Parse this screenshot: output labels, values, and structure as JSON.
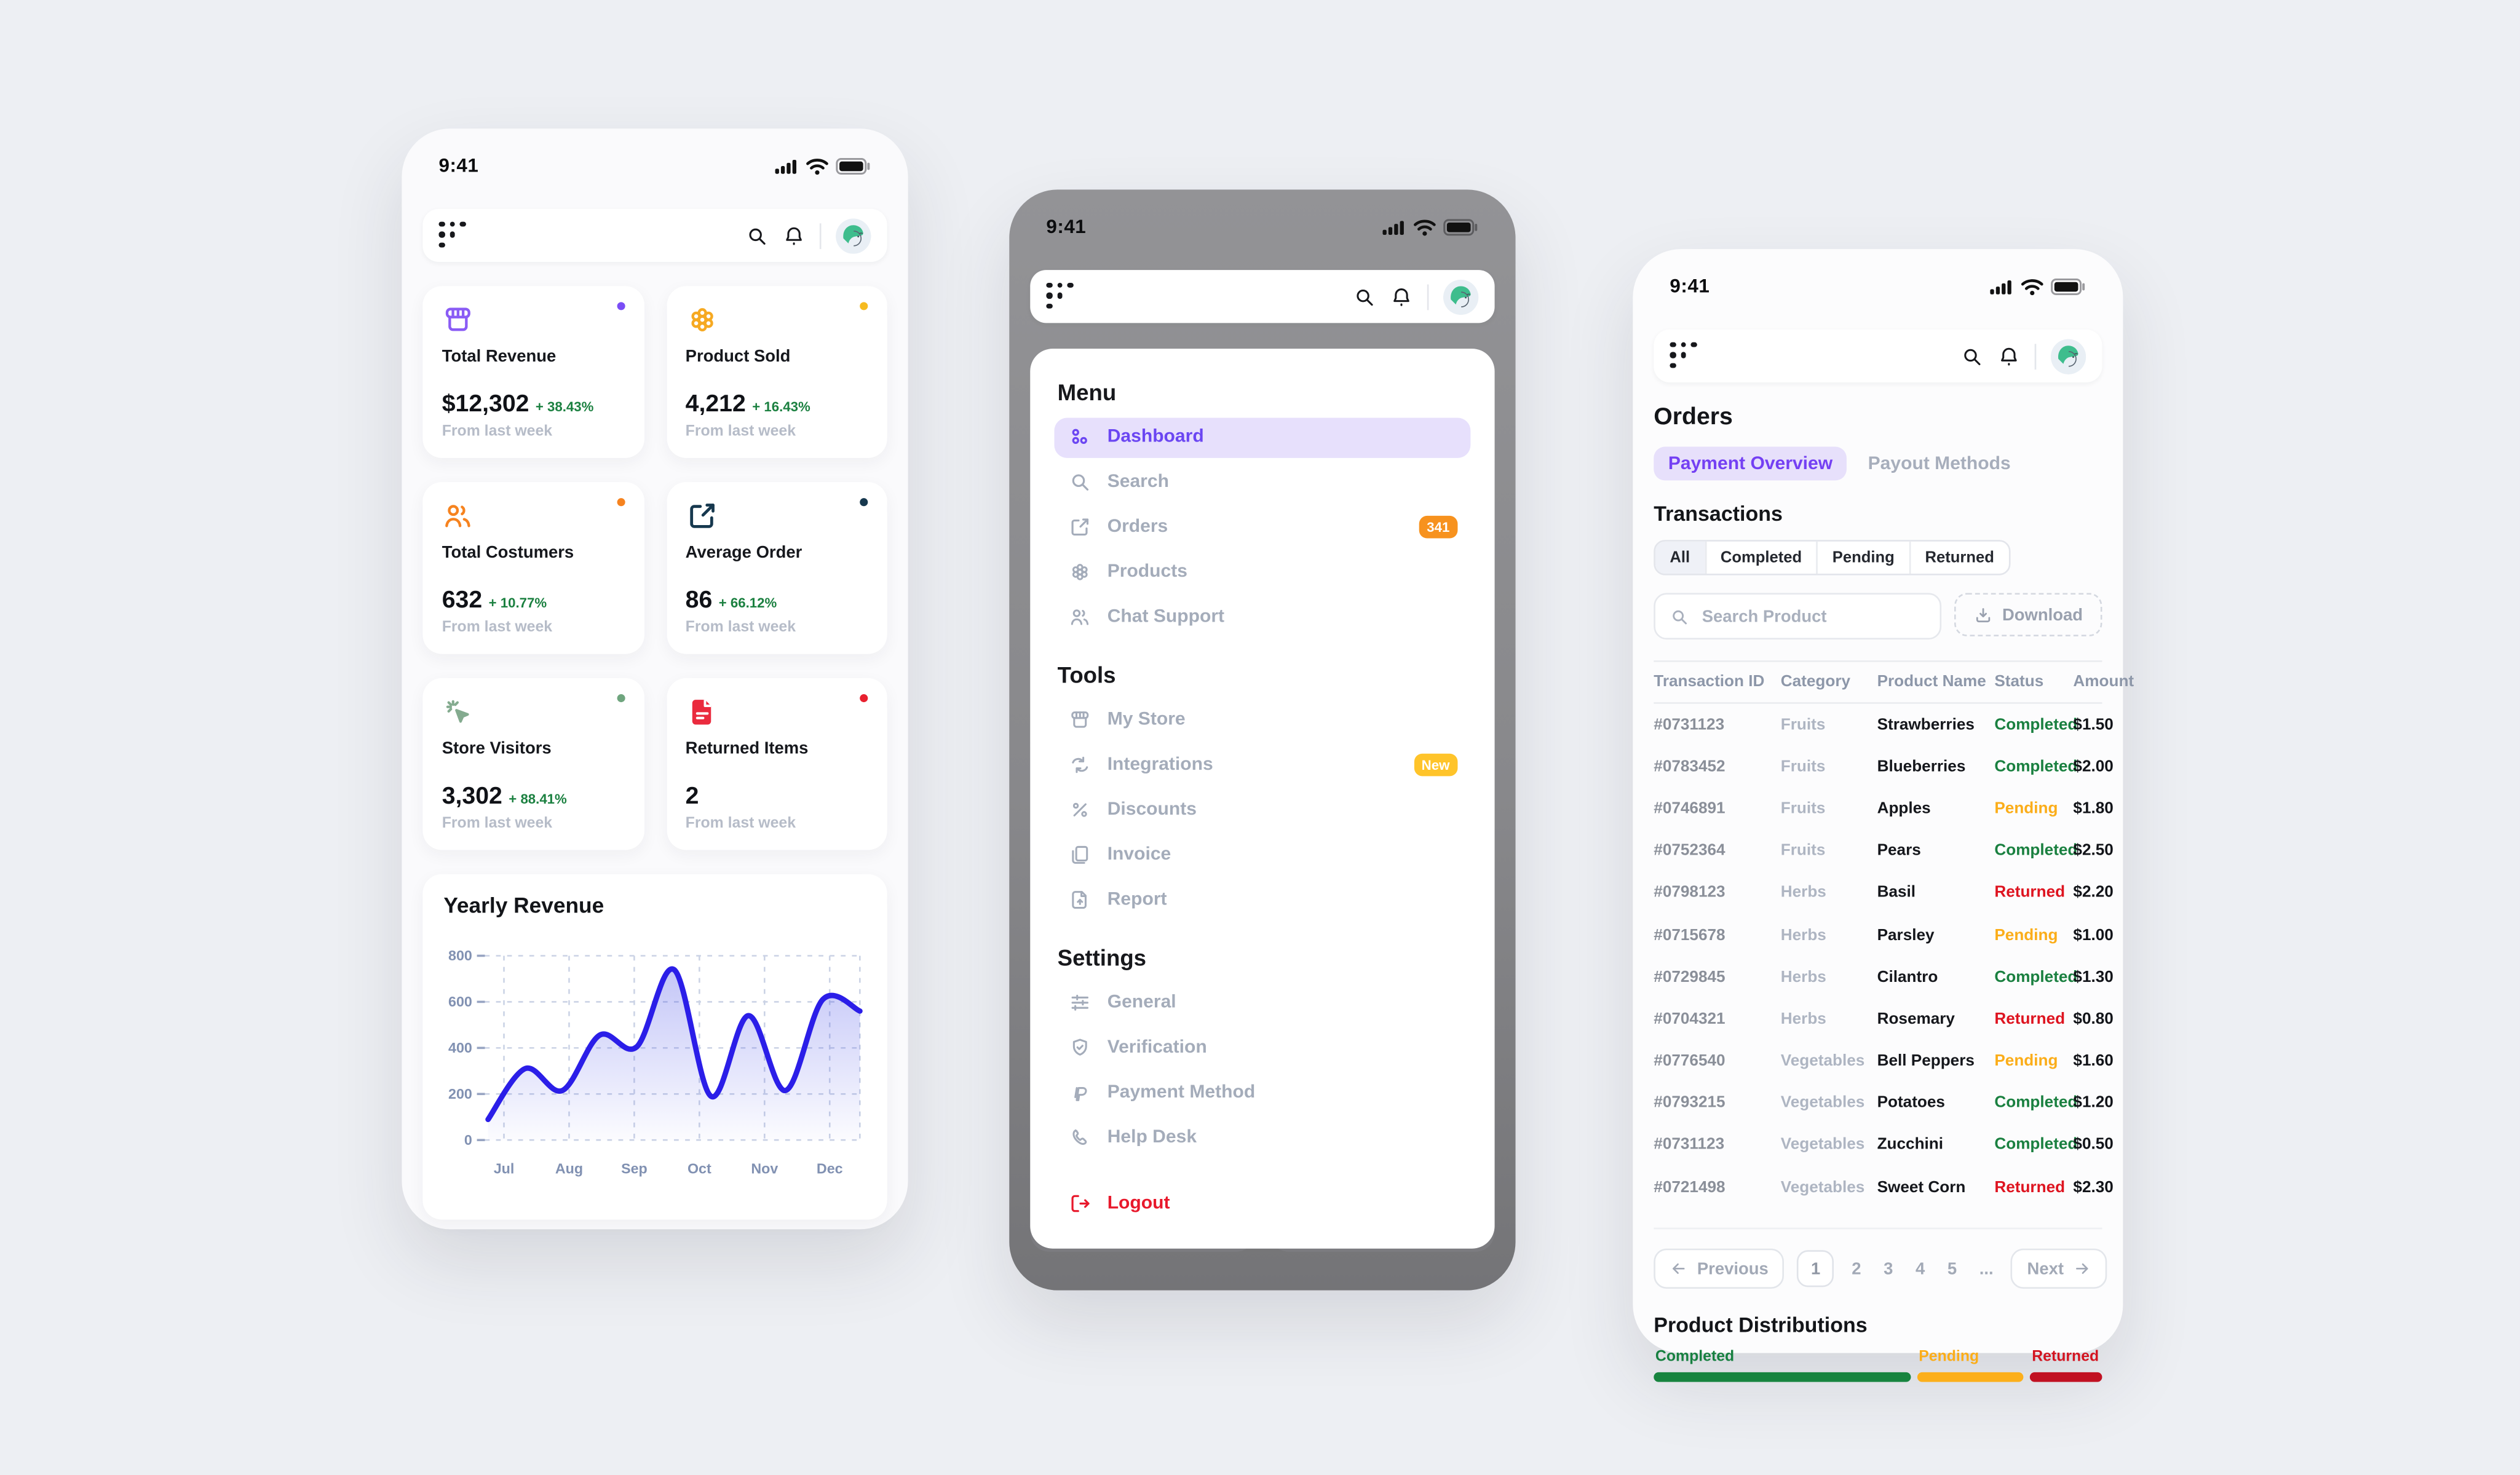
{
  "colors": {
    "accent_purple": "#6B46F2",
    "accent_purple_bg": "#E7E0FC",
    "green": "#1A8040",
    "pending_orange": "#FBAD19",
    "red": "#DE1420",
    "badge_orange": "#F7921E",
    "badge_yellow": "#FFC42A",
    "chart_line_blue": "#2B1EE8",
    "logout_red": "#E8192C"
  },
  "status_bar": {
    "time": "9:41"
  },
  "left_phone": {
    "stats": [
      {
        "icon": "storefront-icon",
        "title": "Total Revenue",
        "value": "$12,302",
        "delta": "+ 38.43%",
        "note": "From last week"
      },
      {
        "icon": "product-icon",
        "title": "Product Sold",
        "value": "4,212",
        "delta": "+ 16.43%",
        "note": "From last week"
      },
      {
        "icon": "customers-icon",
        "title": "Total Costumers",
        "value": "632",
        "delta": "+ 10.77%",
        "note": "From last week"
      },
      {
        "icon": "average-order-icon",
        "title": "Average Order",
        "value": "86",
        "delta": "+ 66.12%",
        "note": "From last week"
      },
      {
        "icon": "store-visitors-icon",
        "title": "Store Visitors",
        "value": "3,302",
        "delta": "+ 88.41%",
        "note": "From last week"
      },
      {
        "icon": "returned-items-icon",
        "title": "Returned Items",
        "value": "2",
        "delta": "",
        "note": "From last week"
      }
    ]
  },
  "chart_data": {
    "type": "area",
    "title": "Yearly Revenue",
    "x_labels": [
      "Jul",
      "Aug",
      "Sep",
      "Oct",
      "Nov",
      "Dec"
    ],
    "ytick_labels": [
      "0",
      "200",
      "400",
      "600",
      "800"
    ],
    "ylim": [
      0,
      800
    ],
    "values": [
      90,
      310,
      215,
      455,
      405,
      740,
      190,
      540,
      215,
      610,
      560
    ],
    "grid": "dashed",
    "legend": "none"
  },
  "middle_phone": {
    "menu": {
      "title": "Menu",
      "items": [
        {
          "label": "Dashboard"
        },
        {
          "label": "Search"
        },
        {
          "label": "Orders",
          "badge": "341"
        },
        {
          "label": "Products"
        },
        {
          "label": "Chat Support"
        }
      ]
    },
    "tools": {
      "title": "Tools",
      "items": [
        {
          "label": "My Store"
        },
        {
          "label": "Integrations",
          "badge": "New"
        },
        {
          "label": "Discounts"
        },
        {
          "label": "Invoice"
        },
        {
          "label": "Report"
        }
      ]
    },
    "settings": {
      "title": "Settings",
      "items": [
        {
          "label": "General"
        },
        {
          "label": "Verification"
        },
        {
          "label": "Payment Method"
        },
        {
          "label": "Help Desk"
        }
      ]
    },
    "logout_label": "Logout"
  },
  "right_phone": {
    "title": "Orders",
    "tabs": [
      {
        "label": "Payment Overview"
      },
      {
        "label": "Payout Methods"
      }
    ],
    "transactions_title": "Transactions",
    "filters": [
      "All",
      "Completed",
      "Pending",
      "Returned"
    ],
    "search_placeholder": "Search Product",
    "download_label": "Download",
    "table": {
      "headers": [
        "Transaction ID",
        "Category",
        "Product Name",
        "Status",
        "Amount"
      ],
      "rows": [
        {
          "id": "#0731123",
          "category": "Fruits",
          "product": "Strawberries",
          "status": "Completed",
          "amount": "$1.50"
        },
        {
          "id": "#0783452",
          "category": "Fruits",
          "product": "Blueberries",
          "status": "Completed",
          "amount": "$2.00"
        },
        {
          "id": "#0746891",
          "category": "Fruits",
          "product": "Apples",
          "status": "Pending",
          "amount": "$1.80"
        },
        {
          "id": "#0752364",
          "category": "Fruits",
          "product": "Pears",
          "status": "Completed",
          "amount": "$2.50"
        },
        {
          "id": "#0798123",
          "category": "Herbs",
          "product": "Basil",
          "status": "Returned",
          "amount": "$2.20"
        },
        {
          "id": "#0715678",
          "category": "Herbs",
          "product": "Parsley",
          "status": "Pending",
          "amount": "$1.00"
        },
        {
          "id": "#0729845",
          "category": "Herbs",
          "product": "Cilantro",
          "status": "Completed",
          "amount": "$1.30"
        },
        {
          "id": "#0704321",
          "category": "Herbs",
          "product": "Rosemary",
          "status": "Returned",
          "amount": "$0.80"
        },
        {
          "id": "#0776540",
          "category": "Vegetables",
          "product": "Bell Peppers",
          "status": "Pending",
          "amount": "$1.60"
        },
        {
          "id": "#0793215",
          "category": "Vegetables",
          "product": "Potatoes",
          "status": "Completed",
          "amount": "$1.20"
        },
        {
          "id": "#0731123",
          "category": "Vegetables",
          "product": "Zucchini",
          "status": "Completed",
          "amount": "$0.50"
        },
        {
          "id": "#0721498",
          "category": "Vegetables",
          "product": "Sweet Corn",
          "status": "Returned",
          "amount": "$2.30"
        }
      ]
    },
    "pagination": {
      "previous": "Previous",
      "pages": [
        "1",
        "2",
        "3",
        "4",
        "5"
      ],
      "ellipsis": "...",
      "next": "Next"
    },
    "distributions_title": "Product Distributions",
    "distributions": [
      {
        "label": "Completed",
        "pct": 59
      },
      {
        "label": "Pending",
        "pct": 24.5
      },
      {
        "label": "Returned",
        "pct": 16.5
      }
    ]
  }
}
